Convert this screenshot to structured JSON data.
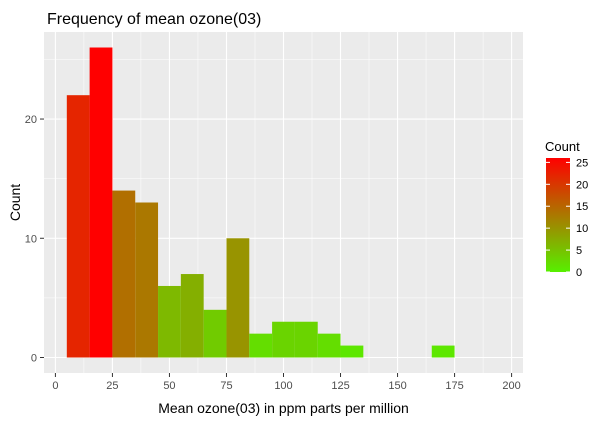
{
  "chart_data": {
    "type": "bar",
    "title": "Frequency of mean ozone(03)",
    "xlabel": "Mean ozone(03) in ppm parts per million",
    "ylabel": "Count",
    "xlim": [
      -5,
      205
    ],
    "ylim": [
      -1.3,
      27.3
    ],
    "x_ticks": [
      0,
      25,
      50,
      75,
      100,
      125,
      150,
      175,
      200
    ],
    "y_ticks": [
      0,
      10,
      20
    ],
    "grid": true,
    "bin_width": 10,
    "bins": [
      {
        "left": 5,
        "right": 15,
        "count": 22
      },
      {
        "left": 15,
        "right": 25,
        "count": 26
      },
      {
        "left": 25,
        "right": 35,
        "count": 14
      },
      {
        "left": 35,
        "right": 45,
        "count": 13
      },
      {
        "left": 45,
        "right": 55,
        "count": 6
      },
      {
        "left": 55,
        "right": 65,
        "count": 7
      },
      {
        "left": 65,
        "right": 75,
        "count": 4
      },
      {
        "left": 75,
        "right": 85,
        "count": 10
      },
      {
        "left": 85,
        "right": 95,
        "count": 2
      },
      {
        "left": 95,
        "right": 105,
        "count": 3
      },
      {
        "left": 105,
        "right": 115,
        "count": 3
      },
      {
        "left": 115,
        "right": 125,
        "count": 2
      },
      {
        "left": 125,
        "right": 135,
        "count": 1
      },
      {
        "left": 135,
        "right": 145,
        "count": 0
      },
      {
        "left": 145,
        "right": 155,
        "count": 0
      },
      {
        "left": 155,
        "right": 165,
        "count": 0
      },
      {
        "left": 165,
        "right": 175,
        "count": 1
      },
      {
        "left": 175,
        "right": 185,
        "count": 0
      },
      {
        "left": 185,
        "right": 195,
        "count": 0
      },
      {
        "left": 195,
        "right": 205,
        "count": 0
      }
    ],
    "fill_scale": {
      "low": "#57F000",
      "high": "#FF0000",
      "limits": [
        0,
        26
      ]
    },
    "legend": {
      "title": "Count",
      "placement": "right",
      "labels": [
        "25",
        "20",
        "15",
        "10",
        "5",
        "0"
      ],
      "values": [
        25,
        20,
        15,
        10,
        5,
        0
      ]
    },
    "colors": {
      "panel_background": "#EBEBEB",
      "grid": "#FFFFFF",
      "tick_text": "#4D4D4D",
      "tick_mark": "#333333"
    }
  }
}
